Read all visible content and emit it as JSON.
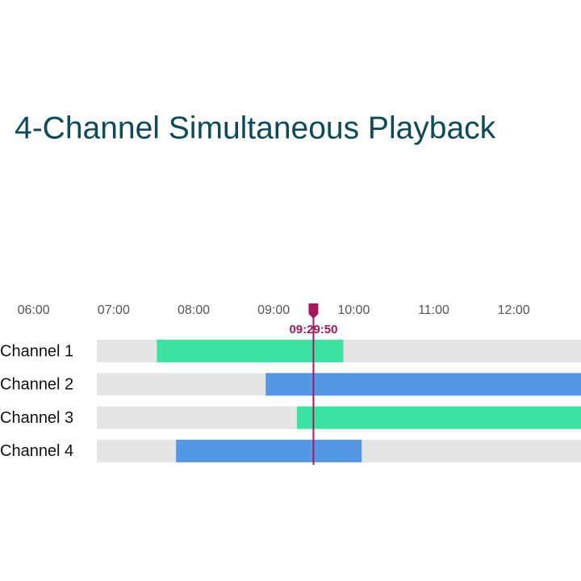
{
  "chart_data": {
    "type": "timeline",
    "title": "4-Channel Simultaneous Playback",
    "xlim": [
      5.58,
      12.84
    ],
    "xticks": [
      {
        "value": 6,
        "label": "06:00"
      },
      {
        "value": 7,
        "label": "07:00"
      },
      {
        "value": 8,
        "label": "08:00"
      },
      {
        "value": 9,
        "label": "09:00"
      },
      {
        "value": 10,
        "label": "10:00"
      },
      {
        "value": 11,
        "label": "11:00"
      },
      {
        "value": 12,
        "label": "12:00"
      }
    ],
    "series": [
      {
        "name": "Channel 1",
        "color": "#3ee3a3",
        "start": 7.54,
        "end": 9.87
      },
      {
        "name": "Channel 2",
        "color": "#5597e3",
        "start": 8.9,
        "end": 12.84
      },
      {
        "name": "Channel 3",
        "color": "#3ee3a3",
        "start": 9.29,
        "end": 12.84
      },
      {
        "name": "Channel 4",
        "color": "#5597e3",
        "start": 7.78,
        "end": 10.1
      }
    ],
    "cursor": {
      "value": 9.497,
      "label": "09:29:50",
      "color": "#a3195b"
    }
  }
}
